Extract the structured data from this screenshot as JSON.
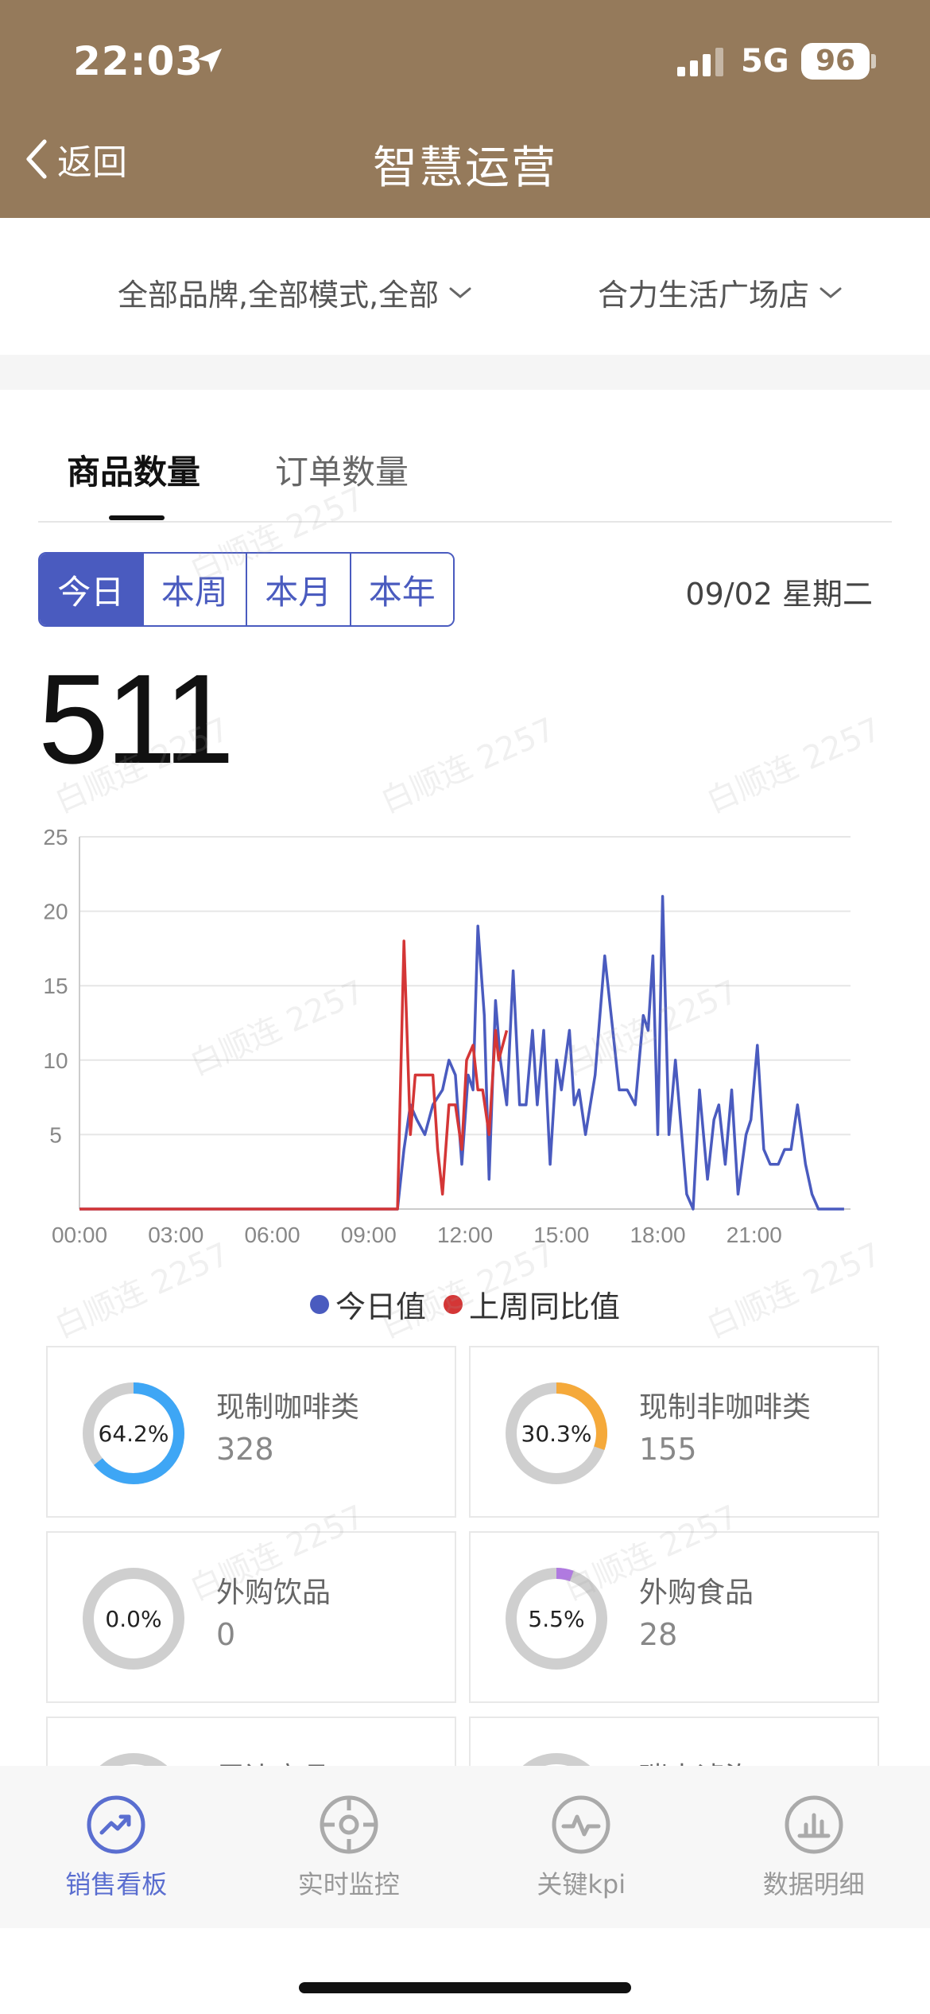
{
  "status_bar": {
    "time": "22:03",
    "network": "5G",
    "battery": "96"
  },
  "nav": {
    "back_label": "返回",
    "title": "智慧运营"
  },
  "filters": {
    "brand_mode": "全部品牌,全部模式,全部",
    "store": "合力生活广场店"
  },
  "tabs": [
    {
      "label": "商品数量"
    },
    {
      "label": "订单数量"
    }
  ],
  "period": {
    "options": [
      "今日",
      "本周",
      "本月",
      "本年"
    ],
    "selected": "今日",
    "date": "09/02 星期二"
  },
  "total": "511",
  "colors": {
    "header": "#957a5b",
    "accent": "#4a5bbf",
    "today": "#4a5bbf",
    "last_week": "#d43636"
  },
  "chart_data": {
    "type": "line",
    "x_ticks": [
      "00:00",
      "03:00",
      "06:00",
      "09:00",
      "12:00",
      "15:00",
      "18:00",
      "21:00"
    ],
    "y_ticks": [
      "5",
      "10",
      "15",
      "20",
      "25"
    ],
    "ylim": [
      0,
      25
    ],
    "xlim_hours": [
      0,
      24
    ],
    "grid": true,
    "legend_position": "bottom",
    "series": [
      {
        "name": "今日值",
        "color": "#4a5bbf",
        "points": [
          [
            0,
            0
          ],
          [
            9.9,
            0
          ],
          [
            10.1,
            4
          ],
          [
            10.3,
            7
          ],
          [
            10.5,
            6
          ],
          [
            10.75,
            5
          ],
          [
            11,
            7
          ],
          [
            11.3,
            8
          ],
          [
            11.5,
            10
          ],
          [
            11.7,
            9
          ],
          [
            11.9,
            3
          ],
          [
            12.1,
            9
          ],
          [
            12.25,
            8
          ],
          [
            12.4,
            19
          ],
          [
            12.6,
            13
          ],
          [
            12.75,
            2
          ],
          [
            12.95,
            14
          ],
          [
            13.1,
            10
          ],
          [
            13.3,
            7
          ],
          [
            13.5,
            16
          ],
          [
            13.7,
            7
          ],
          [
            13.9,
            7
          ],
          [
            14.1,
            12
          ],
          [
            14.25,
            7
          ],
          [
            14.45,
            12
          ],
          [
            14.65,
            3
          ],
          [
            14.85,
            10
          ],
          [
            15,
            8
          ],
          [
            15.25,
            12
          ],
          [
            15.4,
            7
          ],
          [
            15.55,
            8
          ],
          [
            15.75,
            5
          ],
          [
            16.05,
            9
          ],
          [
            16.35,
            17
          ],
          [
            16.55,
            13
          ],
          [
            16.8,
            8
          ],
          [
            17.05,
            8
          ],
          [
            17.3,
            7
          ],
          [
            17.55,
            13
          ],
          [
            17.7,
            12
          ],
          [
            17.85,
            17
          ],
          [
            18,
            5
          ],
          [
            18.15,
            21
          ],
          [
            18.35,
            5
          ],
          [
            18.55,
            10
          ],
          [
            18.9,
            1
          ],
          [
            19.1,
            0
          ],
          [
            19.3,
            8
          ],
          [
            19.55,
            2
          ],
          [
            19.75,
            6
          ],
          [
            19.9,
            7
          ],
          [
            20.1,
            3
          ],
          [
            20.3,
            8
          ],
          [
            20.5,
            1
          ],
          [
            20.75,
            5
          ],
          [
            20.9,
            6
          ],
          [
            21.1,
            11
          ],
          [
            21.3,
            4
          ],
          [
            21.5,
            3
          ],
          [
            21.75,
            3
          ],
          [
            21.95,
            4
          ],
          [
            22.15,
            4
          ],
          [
            22.35,
            7
          ],
          [
            22.6,
            3
          ],
          [
            22.8,
            1
          ],
          [
            23,
            0
          ],
          [
            23.8,
            0
          ]
        ]
      },
      {
        "name": "上周同比值",
        "color": "#d43636",
        "points": [
          [
            0,
            0
          ],
          [
            9.9,
            0
          ],
          [
            10.1,
            18
          ],
          [
            10.3,
            5
          ],
          [
            10.45,
            9
          ],
          [
            10.65,
            9
          ],
          [
            11,
            9
          ],
          [
            11.15,
            4
          ],
          [
            11.3,
            1
          ],
          [
            11.5,
            7
          ],
          [
            11.7,
            7
          ],
          [
            11.9,
            4
          ],
          [
            12.05,
            10
          ],
          [
            12.25,
            11
          ],
          [
            12.4,
            8
          ],
          [
            12.55,
            8
          ],
          [
            12.75,
            5
          ],
          [
            12.95,
            12
          ],
          [
            13.05,
            10
          ],
          [
            13.3,
            12
          ]
        ]
      }
    ]
  },
  "categories": [
    {
      "name": "现制咖啡类",
      "value": "328",
      "percent": "64.2%",
      "ratio": 0.642,
      "color": "#3ea6f5"
    },
    {
      "name": "现制非咖啡类",
      "value": "155",
      "percent": "30.3%",
      "ratio": 0.303,
      "color": "#f5a93a"
    },
    {
      "name": "外购饮品",
      "value": "0",
      "percent": "0.0%",
      "ratio": 0.0,
      "color": "#3ea6f5"
    },
    {
      "name": "外购食品",
      "value": "28",
      "percent": "5.5%",
      "ratio": 0.055,
      "color": "#b07ae0"
    },
    {
      "name": "周边商品",
      "value": "",
      "percent": "",
      "ratio": 0,
      "color": "#3ea6f5"
    },
    {
      "name": "瑞幸滤泡",
      "value": "",
      "percent": "",
      "ratio": 0,
      "color": "#3ea6f5"
    }
  ],
  "bottom_nav": [
    {
      "label": "销售看板",
      "icon": "trend-chart-icon",
      "active": true
    },
    {
      "label": "实时监控",
      "icon": "crosshair-icon",
      "active": false
    },
    {
      "label": "关键kpi",
      "icon": "pulse-icon",
      "active": false
    },
    {
      "label": "数据明细",
      "icon": "bar-chart-icon",
      "active": false
    }
  ],
  "watermark": "白顺连 2257"
}
